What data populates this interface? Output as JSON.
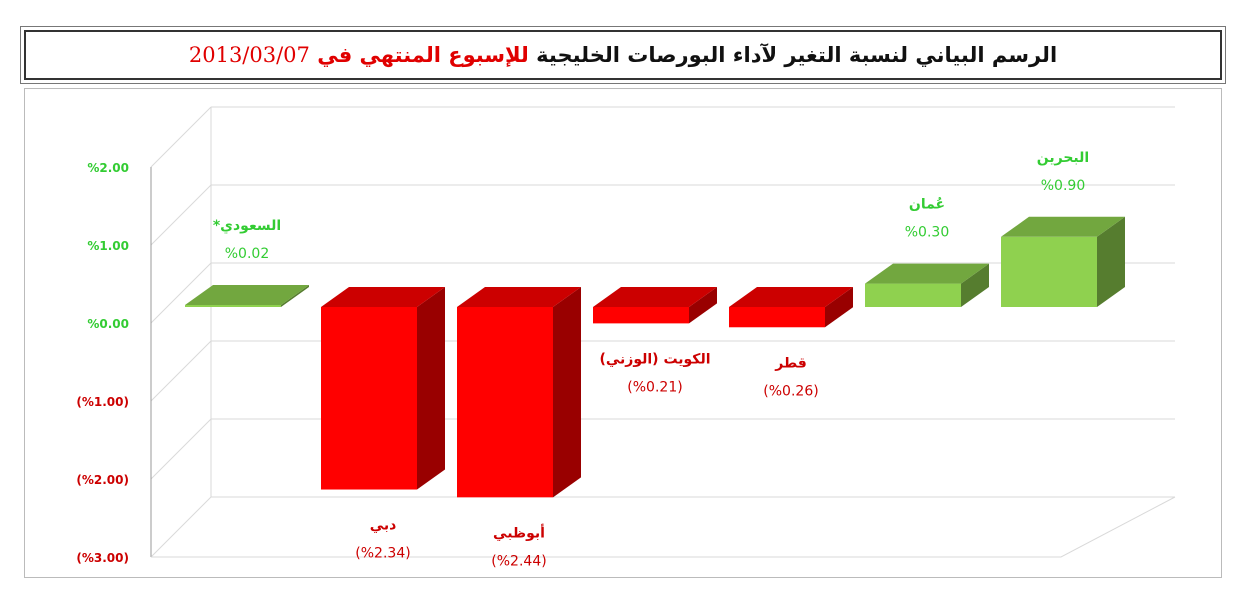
{
  "title": {
    "part1": "الرسم البياني لنسبة التغير لآداء البورصات الخليجية",
    "part2": "للإسبوع المنتهي في",
    "date": "2013/03/07"
  },
  "colors": {
    "positive": "#8fd14f",
    "negative": "#ff0000",
    "positive_label": "#33cc33",
    "negative_label": "#cc0000",
    "grid": "#d9d9d9"
  },
  "chart_data": {
    "type": "bar",
    "categories": [
      "السعودي*",
      "دبي",
      "أبوظبي",
      "الكويت (الوزني)",
      "قطر",
      "عُمان",
      "البحرين"
    ],
    "values": [
      0.02,
      -2.34,
      -2.44,
      -0.21,
      -0.26,
      0.3,
      0.9
    ],
    "value_labels": [
      "%0.02",
      "(%2.34)",
      "(%2.44)",
      "(%0.21)",
      "(%0.26)",
      "%0.30",
      "%0.90"
    ],
    "ylim": [
      -3,
      2
    ],
    "yticks": [
      2,
      1,
      0,
      -1,
      -2,
      -3
    ],
    "ytick_labels": [
      "%2.00",
      "%1.00",
      "%0.00",
      "(%1.00)",
      "(%2.00)",
      "(%3.00)"
    ],
    "grid": true
  }
}
